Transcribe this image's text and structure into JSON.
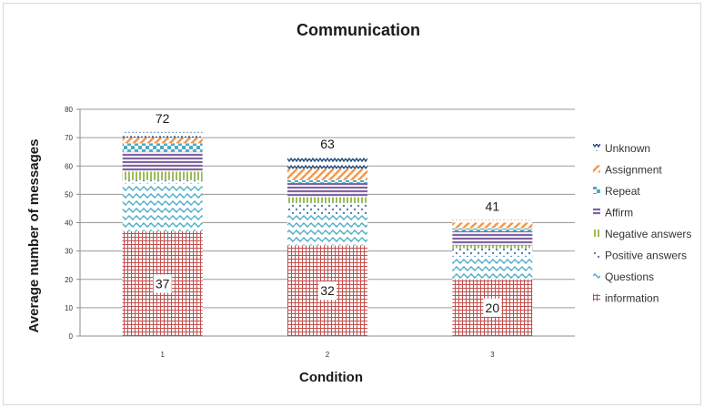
{
  "chart_data": {
    "type": "bar",
    "stacked": true,
    "title": "Communication",
    "xlabel": "Condition",
    "ylabel": "Average number of messages",
    "categories": [
      "1",
      "2",
      "3"
    ],
    "ylim": [
      0,
      80
    ],
    "yticks": [
      0,
      10,
      20,
      30,
      40,
      50,
      60,
      70,
      80
    ],
    "grid": true,
    "legend_position": "right",
    "totals": [
      72,
      63,
      41
    ],
    "series": [
      {
        "name": "information",
        "values": [
          37,
          32,
          20
        ],
        "color": "#c0504d",
        "pattern": "grid",
        "label_values": [
          "37",
          "32",
          "20"
        ]
      },
      {
        "name": "Questions",
        "values": [
          17,
          11,
          8
        ],
        "color": "#4bacc6",
        "pattern": "zigzag"
      },
      {
        "name": "Positive answers",
        "values": [
          1,
          4,
          3
        ],
        "color": "#4f81bd",
        "pattern": "dots"
      },
      {
        "name": "Negative answers",
        "values": [
          3,
          2,
          1
        ],
        "color": "#9bbb59",
        "pattern": "vlines"
      },
      {
        "name": "Affirm",
        "values": [
          7,
          5,
          5
        ],
        "color": "#8064a2",
        "pattern": "hlines"
      },
      {
        "name": "Repeat",
        "values": [
          3,
          1,
          1
        ],
        "color": "#4bacc6",
        "pattern": "checker"
      },
      {
        "name": "Assignment",
        "values": [
          2,
          4,
          2
        ],
        "color": "#f79646",
        "pattern": "diag"
      },
      {
        "name": "Unknown",
        "values": [
          2,
          4,
          1
        ],
        "color": "#1f497d",
        "pattern": "zigzag-small"
      }
    ]
  }
}
